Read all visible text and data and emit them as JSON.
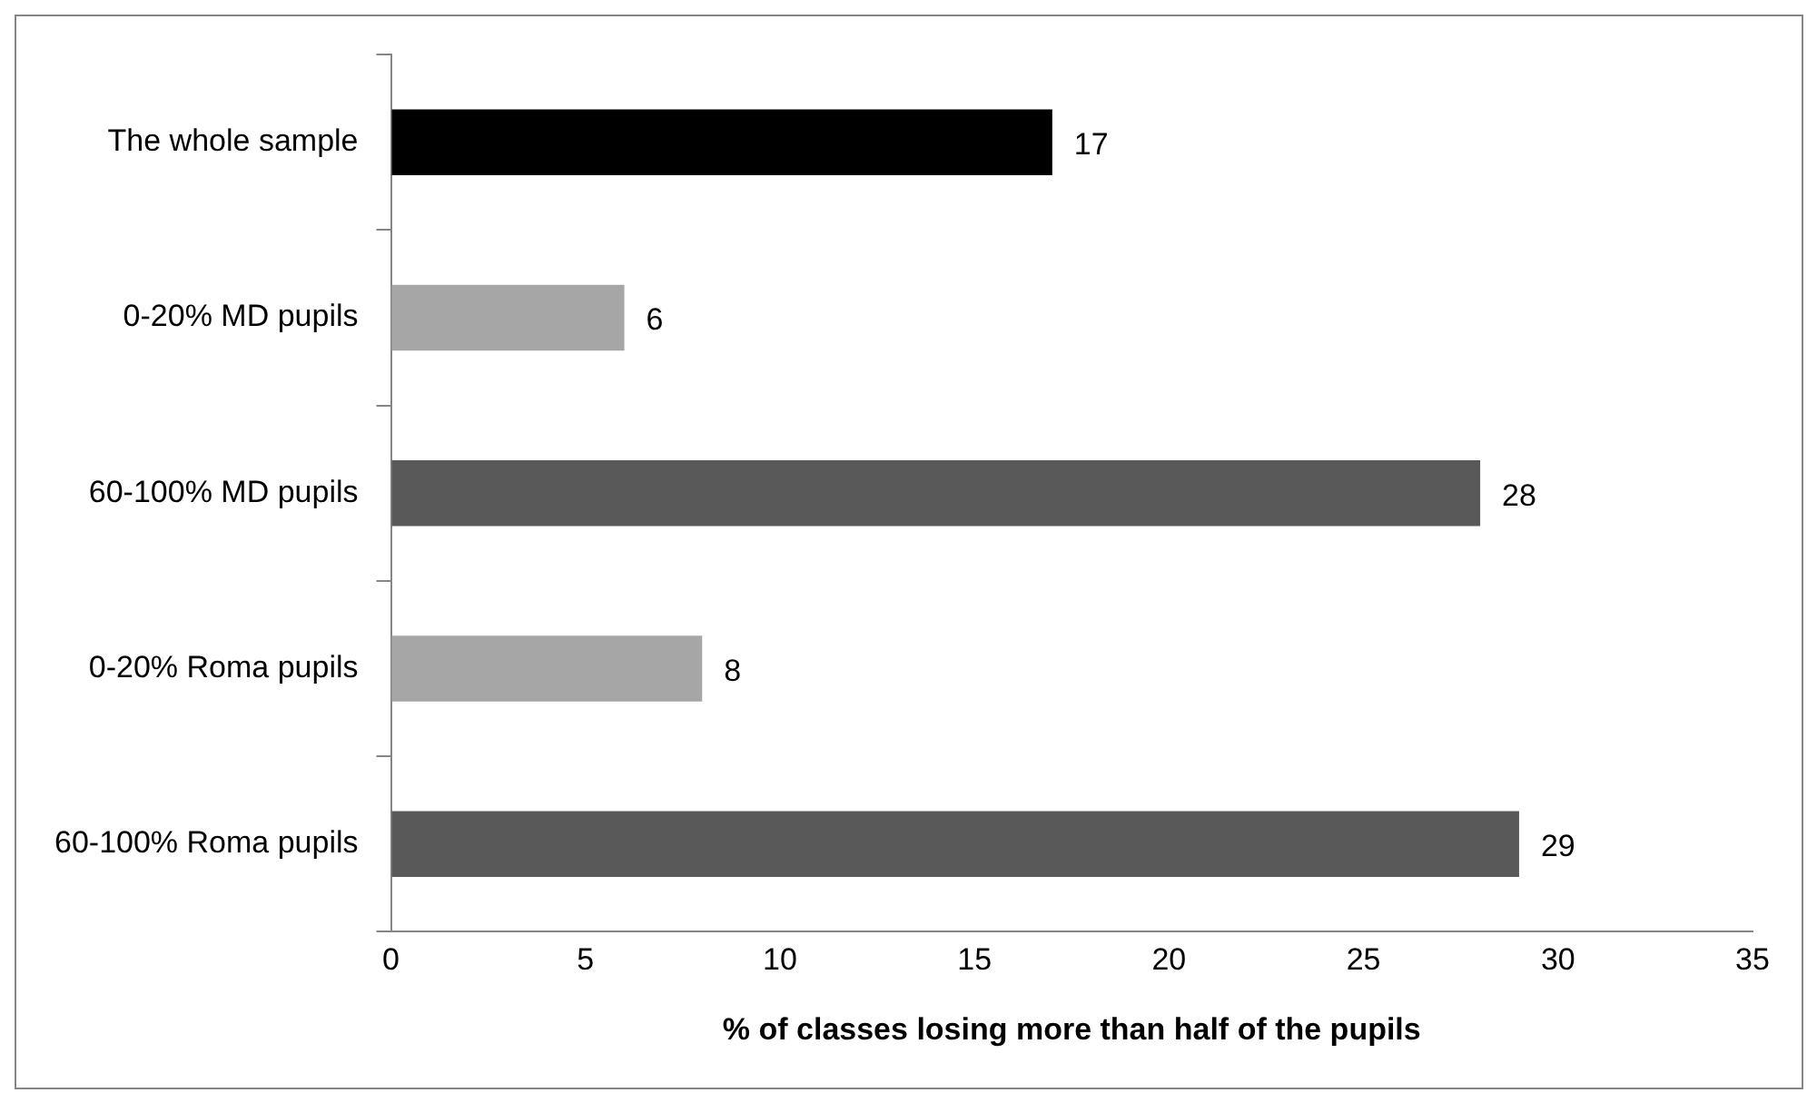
{
  "chart_data": {
    "type": "bar",
    "orientation": "horizontal",
    "xlabel": "% of classes losing more than half of the pupils",
    "categories": [
      "The whole sample",
      "0-20% MD pupils",
      "60-100% MD pupils",
      "0-20% Roma pupils",
      "60-100% Roma pupils"
    ],
    "values": [
      17,
      6,
      28,
      8,
      29
    ],
    "colors": [
      "#000000",
      "#a6a6a6",
      "#595959",
      "#a6a6a6",
      "#595959"
    ],
    "xlim": [
      0,
      35
    ],
    "xticks": [
      0,
      5,
      10,
      15,
      20,
      25,
      30,
      35
    ],
    "grid": false,
    "legend": false,
    "data_labels": true
  }
}
